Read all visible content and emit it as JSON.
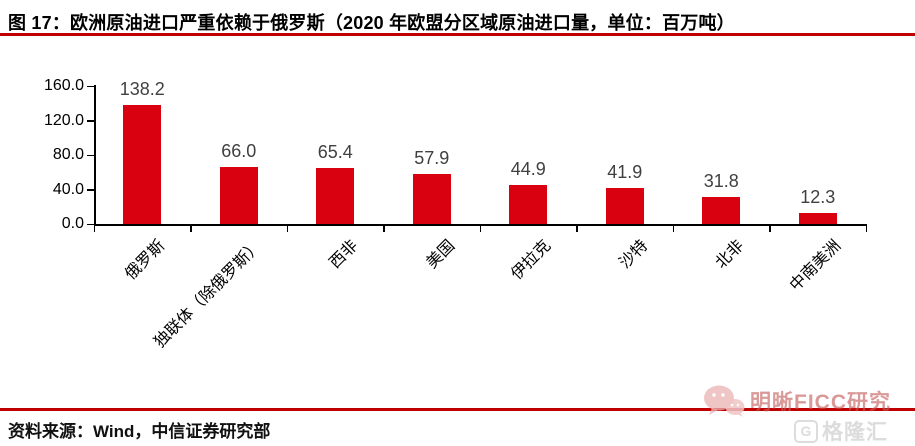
{
  "title": "图 17：欧洲原油进口严重依赖于俄罗斯（2020 年欧盟分区域原油进口量，单位：百万吨）",
  "source": "资料来源：Wind，中信证券研究部",
  "watermark": {
    "wechat_name": "明晰FICC研究",
    "logo_letter": "G",
    "logo_text": "格隆汇"
  },
  "colors": {
    "bar": "#D9000F",
    "rule": "#C00000",
    "axis": "#000000",
    "value_label": "#404040"
  },
  "chart_data": {
    "type": "bar",
    "title": "2020 年欧盟分区域原油进口量",
    "unit": "百万吨",
    "categories": [
      "俄罗斯",
      "独联体（除俄罗斯）",
      "西非",
      "美国",
      "伊拉克",
      "沙特",
      "北非",
      "中南美洲"
    ],
    "values": [
      138.2,
      66.0,
      65.4,
      57.9,
      44.9,
      41.9,
      31.8,
      12.3
    ],
    "value_labels": [
      "138.2",
      "66.0",
      "65.4",
      "57.9",
      "44.9",
      "41.9",
      "31.8",
      "12.3"
    ],
    "xlabel": "",
    "ylabel": "",
    "ylim": [
      0,
      160
    ],
    "yticks": [
      0,
      40,
      80,
      120,
      160
    ],
    "ytick_labels": [
      "0.0",
      "40.0",
      "80.0",
      "120.0",
      "160.0"
    ],
    "grid": false,
    "legend": null
  }
}
